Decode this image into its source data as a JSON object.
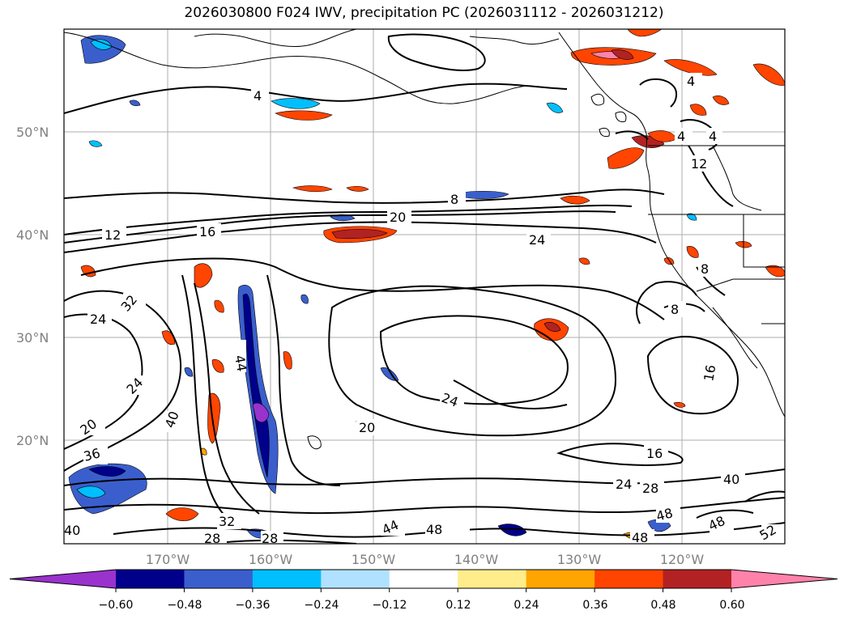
{
  "title": "2026030800 F024 IWV, precipitation PC (2026031112 - 2026031212)",
  "lon_labels": [
    "170°W",
    "160°W",
    "150°W",
    "140°W",
    "130°W",
    "120°W"
  ],
  "lat_labels": [
    "50°N",
    "40°N",
    "30°N",
    "20°N"
  ],
  "contour_labels": [
    "4",
    "4",
    "4",
    "4",
    "8",
    "8",
    "8",
    "12",
    "12",
    "16",
    "16",
    "16",
    "20",
    "20",
    "20",
    "24",
    "24",
    "24",
    "24",
    "24",
    "28",
    "28",
    "28",
    "32",
    "32",
    "36",
    "40",
    "40",
    "40",
    "44",
    "44",
    "48",
    "48",
    "48",
    "48",
    "52"
  ],
  "colorbar": {
    "ticks": [
      "−0.60",
      "−0.48",
      "−0.36",
      "−0.24",
      "−0.12",
      "0.12",
      "0.24",
      "0.36",
      "0.48",
      "0.60"
    ],
    "colors": [
      "#9a32cd",
      "#00008b",
      "#3a5fcd",
      "#00bfff",
      "#b0e2ff",
      "#ffffff",
      "#ffec8b",
      "#ffa500",
      "#ff4500",
      "#b22222",
      "#ff82ab"
    ]
  }
}
